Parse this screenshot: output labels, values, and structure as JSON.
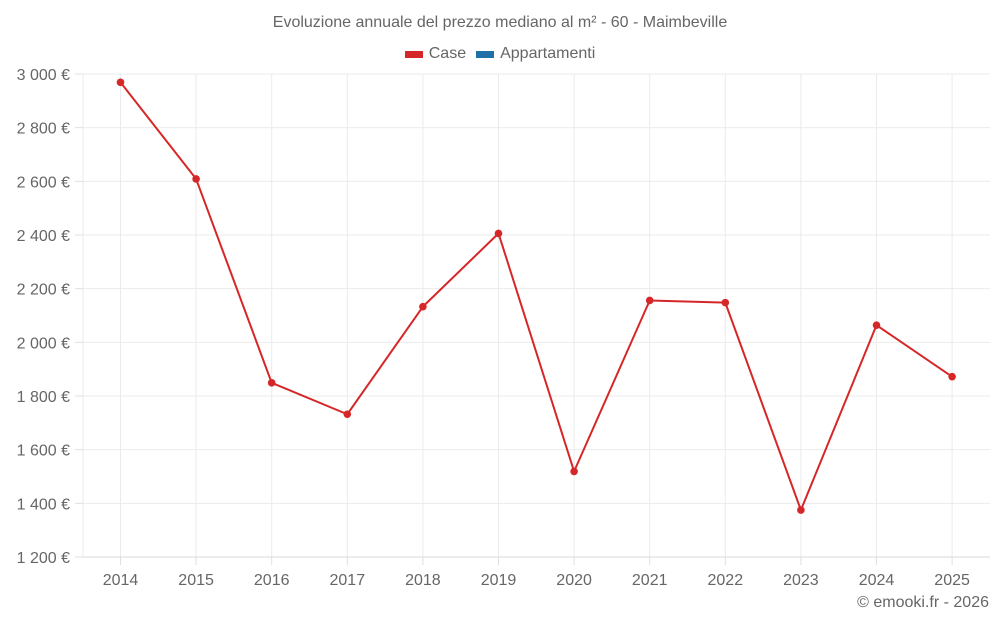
{
  "chart_data": {
    "type": "line",
    "title": "Evoluzione annuale del prezzo mediano al m² - 60 - Maimbeville",
    "xlabel": "",
    "ylabel": "",
    "categories": [
      "2014",
      "2015",
      "2016",
      "2017",
      "2018",
      "2019",
      "2020",
      "2021",
      "2022",
      "2023",
      "2024",
      "2025"
    ],
    "series": [
      {
        "name": "Case",
        "color": "#d62728",
        "values": [
          2969,
          2609,
          1849,
          1732,
          2133,
          2406,
          1519,
          2156,
          2148,
          1375,
          2064,
          1872
        ]
      },
      {
        "name": "Appartamenti",
        "color": "#1f6fa8",
        "values": []
      }
    ],
    "ylim": [
      1200,
      3000
    ],
    "yticks": [
      1200,
      1400,
      1600,
      1800,
      2000,
      2200,
      2400,
      2600,
      2800,
      3000
    ],
    "ytick_labels": [
      "1 200 €",
      "1 400 €",
      "1 600 €",
      "1 800 €",
      "2 000 €",
      "2 200 €",
      "2 400 €",
      "2 600 €",
      "2 800 €",
      "3 000 €"
    ],
    "grid": true,
    "legend_position": "top"
  },
  "legend": {
    "items": [
      {
        "label": "Case",
        "color": "#d62728"
      },
      {
        "label": "Appartamenti",
        "color": "#1f6fa8"
      }
    ]
  },
  "footer": {
    "credit": "© emooki.fr - 2026"
  }
}
